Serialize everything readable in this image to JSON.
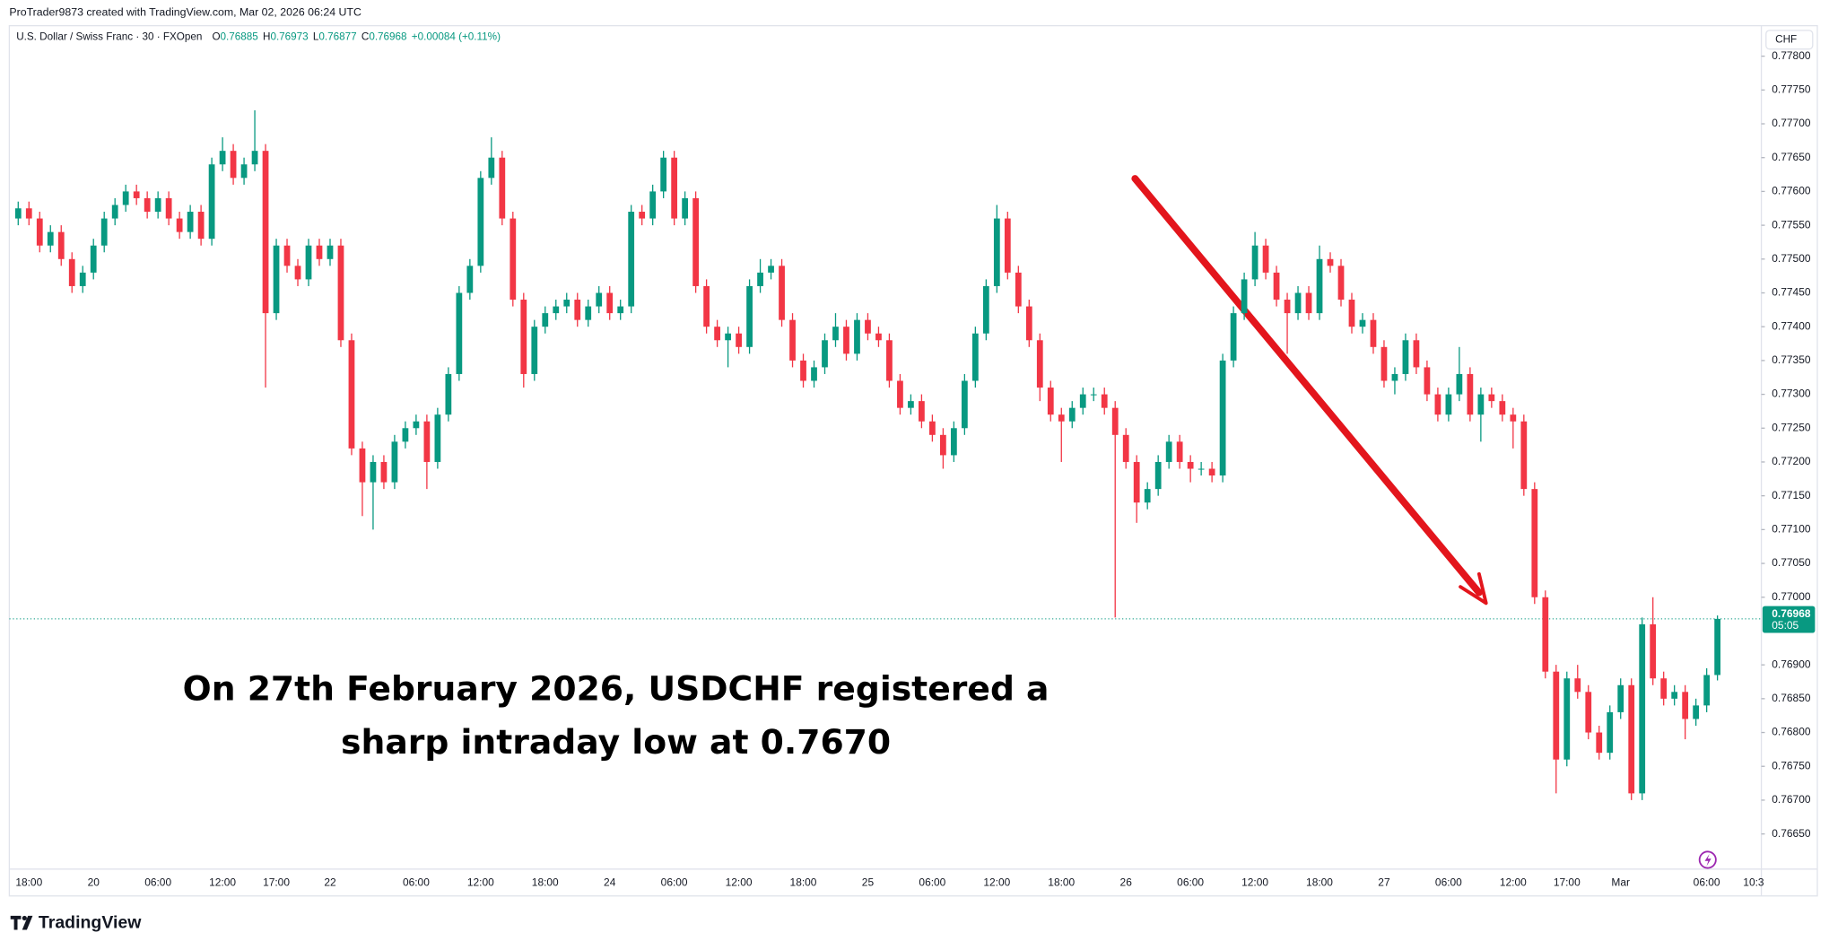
{
  "ui": {
    "attribution": "ProTrader9873 created with TradingView.com, Mar 02, 2026 06:24 UTC",
    "symbol": "U.S. Dollar / Swiss Franc · 30 · FXOpen",
    "ohlc": [
      {
        "key": "O",
        "value": "0.76885"
      },
      {
        "key": "H",
        "value": "0.76973"
      },
      {
        "key": "L",
        "value": "0.76877"
      },
      {
        "key": "C",
        "value": "0.76968"
      }
    ],
    "change": "+0.00084 (+0.11%)",
    "currency": "CHF",
    "last_price": {
      "value": 0.76968,
      "label": "0.76968"
    },
    "countdown": "05:05",
    "x_tail_label": "10:3",
    "brand": "TradingView"
  },
  "chart_data": {
    "type": "candlestick",
    "up_color": "#089981",
    "down_color": "#f23645",
    "grid": false,
    "annotation": [
      "On 27th February 2026, USDCHF registered a",
      "sharp intraday low at 0.7670"
    ],
    "ylim": [
      0.76598,
      0.77814
    ],
    "yticks": [
      {
        "value": 0.7665,
        "label": "0.76650"
      },
      {
        "value": 0.767,
        "label": "0.76700"
      },
      {
        "value": 0.7675,
        "label": "0.76750"
      },
      {
        "value": 0.768,
        "label": "0.76800"
      },
      {
        "value": 0.7685,
        "label": "0.76850"
      },
      {
        "value": 0.769,
        "label": "0.76900"
      },
      {
        "value": 0.77,
        "label": "0.77000"
      },
      {
        "value": 0.7705,
        "label": "0.77050"
      },
      {
        "value": 0.771,
        "label": "0.77100"
      },
      {
        "value": 0.7715,
        "label": "0.77150"
      },
      {
        "value": 0.772,
        "label": "0.77200"
      },
      {
        "value": 0.7725,
        "label": "0.77250"
      },
      {
        "value": 0.773,
        "label": "0.77300"
      },
      {
        "value": 0.7735,
        "label": "0.77350"
      },
      {
        "value": 0.774,
        "label": "0.77400"
      },
      {
        "value": 0.7745,
        "label": "0.77450"
      },
      {
        "value": 0.775,
        "label": "0.77500"
      },
      {
        "value": 0.7755,
        "label": "0.77550"
      },
      {
        "value": 0.776,
        "label": "0.77600"
      },
      {
        "value": 0.7765,
        "label": "0.77650"
      },
      {
        "value": 0.777,
        "label": "0.77700"
      },
      {
        "value": 0.7775,
        "label": "0.77750"
      },
      {
        "value": 0.778,
        "label": "0.77800"
      }
    ],
    "categories": [
      null,
      "18:00",
      null,
      null,
      null,
      null,
      null,
      "20",
      null,
      null,
      null,
      null,
      null,
      "06:00",
      null,
      null,
      null,
      null,
      null,
      "12:00",
      null,
      null,
      null,
      null,
      "17:00",
      null,
      null,
      null,
      null,
      "22",
      null,
      null,
      null,
      null,
      null,
      null,
      null,
      "06:00",
      null,
      null,
      null,
      null,
      null,
      "12:00",
      null,
      null,
      null,
      null,
      null,
      "18:00",
      null,
      null,
      null,
      null,
      null,
      "24",
      null,
      null,
      null,
      null,
      null,
      "06:00",
      null,
      null,
      null,
      null,
      null,
      "12:00",
      null,
      null,
      null,
      null,
      null,
      "18:00",
      null,
      null,
      null,
      null,
      null,
      "25",
      null,
      null,
      null,
      null,
      null,
      "06:00",
      null,
      null,
      null,
      null,
      null,
      "12:00",
      null,
      null,
      null,
      null,
      null,
      "18:00",
      null,
      null,
      null,
      null,
      null,
      "26",
      null,
      null,
      null,
      null,
      null,
      "06:00",
      null,
      null,
      null,
      null,
      null,
      "12:00",
      null,
      null,
      null,
      null,
      null,
      "18:00",
      null,
      null,
      null,
      null,
      null,
      "27",
      null,
      null,
      null,
      null,
      null,
      "06:00",
      null,
      null,
      null,
      null,
      null,
      "12:00",
      null,
      null,
      null,
      null,
      "17:00",
      null,
      null,
      null,
      null,
      "Mar",
      null,
      null,
      null,
      null,
      null,
      null,
      null,
      "06:00",
      null
    ],
    "open": [
      0.7756,
      0.77575,
      0.7756,
      0.7752,
      0.7754,
      0.775,
      0.7746,
      0.7748,
      0.7752,
      0.7756,
      0.7758,
      0.776,
      0.7759,
      0.7757,
      0.7759,
      0.7756,
      0.7754,
      0.7757,
      0.7753,
      0.7764,
      0.7766,
      0.7762,
      0.7764,
      0.7766,
      0.7742,
      0.7752,
      0.7749,
      0.7747,
      0.7752,
      0.775,
      0.7752,
      0.7738,
      0.7722,
      0.7717,
      0.772,
      0.7717,
      0.7723,
      0.7725,
      0.7726,
      0.772,
      0.7727,
      0.7733,
      0.7745,
      0.7749,
      0.7762,
      0.7765,
      0.7756,
      0.7744,
      0.7733,
      0.774,
      0.7742,
      0.7743,
      0.7744,
      0.7741,
      0.7743,
      0.7745,
      0.7742,
      0.7743,
      0.7757,
      0.7756,
      0.776,
      0.7765,
      0.7756,
      0.7759,
      0.7746,
      0.774,
      0.7738,
      0.7739,
      0.7737,
      0.7746,
      0.7748,
      0.7749,
      0.7741,
      0.7735,
      0.7732,
      0.7734,
      0.7738,
      0.774,
      0.7736,
      0.7741,
      0.7739,
      0.7738,
      0.7732,
      0.7728,
      0.7729,
      0.7726,
      0.7724,
      0.7721,
      0.7725,
      0.7732,
      0.7739,
      0.7746,
      0.7756,
      0.7748,
      0.7743,
      0.7738,
      0.7731,
      0.7727,
      0.7726,
      0.7728,
      0.773,
      0.773,
      0.7728,
      0.7724,
      0.772,
      0.7714,
      0.7716,
      0.772,
      0.7723,
      0.772,
      0.7719,
      0.7719,
      0.7718,
      0.7735,
      0.7742,
      0.7747,
      0.7752,
      0.7748,
      0.7744,
      0.7742,
      0.7745,
      0.7742,
      0.775,
      0.7749,
      0.7744,
      0.774,
      0.7741,
      0.7737,
      0.7732,
      0.7733,
      0.7738,
      0.7734,
      0.773,
      0.7727,
      0.773,
      0.7733,
      0.7727,
      0.773,
      0.7729,
      0.7727,
      0.7726,
      0.7716,
      0.77,
      0.7689,
      0.7676,
      0.7688,
      0.7686,
      0.768,
      0.7677,
      0.7683,
      0.7687,
      0.7671,
      0.7696,
      0.7688,
      0.7685,
      0.7686,
      0.7682,
      0.7684,
      0.76885
    ],
    "high": [
      0.77585,
      0.77585,
      0.7757,
      0.7755,
      0.7755,
      0.7751,
      0.7749,
      0.7753,
      0.7757,
      0.7759,
      0.7761,
      0.7761,
      0.776,
      0.776,
      0.776,
      0.7757,
      0.7758,
      0.7758,
      0.7765,
      0.7768,
      0.7767,
      0.7765,
      0.7772,
      0.7767,
      0.7753,
      0.7753,
      0.775,
      0.7753,
      0.7753,
      0.7753,
      0.7753,
      0.7739,
      0.7723,
      0.7721,
      0.7721,
      0.7724,
      0.7726,
      0.7727,
      0.7727,
      0.7728,
      0.7734,
      0.7746,
      0.775,
      0.7763,
      0.7768,
      0.7766,
      0.7757,
      0.7745,
      0.7741,
      0.7743,
      0.7744,
      0.7745,
      0.7745,
      0.7744,
      0.7746,
      0.7746,
      0.7744,
      0.7758,
      0.7758,
      0.7761,
      0.7766,
      0.7766,
      0.776,
      0.776,
      0.7747,
      0.7741,
      0.774,
      0.774,
      0.7747,
      0.775,
      0.775,
      0.775,
      0.7742,
      0.7736,
      0.7735,
      0.7739,
      0.7742,
      0.7741,
      0.7742,
      0.7742,
      0.774,
      0.7739,
      0.7733,
      0.773,
      0.773,
      0.7727,
      0.7725,
      0.7726,
      0.7733,
      0.774,
      0.7747,
      0.7758,
      0.7757,
      0.7749,
      0.7744,
      0.7739,
      0.7732,
      0.7728,
      0.7729,
      0.7731,
      0.7731,
      0.7731,
      0.7729,
      0.7725,
      0.7721,
      0.7717,
      0.7721,
      0.7724,
      0.7724,
      0.7721,
      0.772,
      0.772,
      0.7736,
      0.7743,
      0.7748,
      0.7754,
      0.7753,
      0.7749,
      0.7745,
      0.7746,
      0.7746,
      0.7752,
      0.7751,
      0.775,
      0.7745,
      0.7742,
      0.7742,
      0.7738,
      0.7734,
      0.7739,
      0.7739,
      0.7735,
      0.7731,
      0.7731,
      0.7737,
      0.7734,
      0.7731,
      0.7731,
      0.773,
      0.7728,
      0.7727,
      0.7717,
      0.7701,
      0.769,
      0.7689,
      0.769,
      0.7687,
      0.7681,
      0.7684,
      0.7688,
      0.7688,
      0.7697,
      0.77,
      0.7689,
      0.7687,
      0.7687,
      0.7685,
      0.76895,
      0.76973
    ],
    "low": [
      0.7755,
      0.7755,
      0.7751,
      0.7751,
      0.7749,
      0.7745,
      0.7745,
      0.7747,
      0.7751,
      0.7755,
      0.7757,
      0.7758,
      0.7756,
      0.7756,
      0.7755,
      0.7753,
      0.7753,
      0.7752,
      0.7752,
      0.7763,
      0.7761,
      0.7761,
      0.7763,
      0.7731,
      0.7741,
      0.7748,
      0.7746,
      0.7746,
      0.7749,
      0.7749,
      0.7737,
      0.7721,
      0.7712,
      0.771,
      0.7716,
      0.7716,
      0.7722,
      0.7724,
      0.7716,
      0.7719,
      0.7726,
      0.7732,
      0.7744,
      0.7748,
      0.7761,
      0.7755,
      0.7743,
      0.7731,
      0.7732,
      0.7739,
      0.7741,
      0.7742,
      0.774,
      0.774,
      0.7742,
      0.7741,
      0.7741,
      0.7742,
      0.7755,
      0.7755,
      0.7759,
      0.7755,
      0.7755,
      0.7745,
      0.7739,
      0.7737,
      0.7734,
      0.7736,
      0.7736,
      0.7745,
      0.7747,
      0.774,
      0.7734,
      0.7731,
      0.7731,
      0.7733,
      0.7737,
      0.7735,
      0.7735,
      0.7738,
      0.7737,
      0.7731,
      0.7727,
      0.7727,
      0.7725,
      0.7723,
      0.7719,
      0.772,
      0.7724,
      0.7731,
      0.7738,
      0.7745,
      0.7747,
      0.7742,
      0.7737,
      0.7729,
      0.7726,
      0.772,
      0.7725,
      0.7727,
      0.7729,
      0.7727,
      0.7697,
      0.7719,
      0.7711,
      0.7713,
      0.7715,
      0.7719,
      0.7719,
      0.7717,
      0.7718,
      0.7717,
      0.7717,
      0.7734,
      0.7741,
      0.7746,
      0.7747,
      0.7743,
      0.7736,
      0.7741,
      0.7741,
      0.7741,
      0.7748,
      0.7743,
      0.7739,
      0.7739,
      0.7736,
      0.7731,
      0.773,
      0.7732,
      0.7733,
      0.7729,
      0.7726,
      0.7726,
      0.7729,
      0.7726,
      0.7723,
      0.7728,
      0.7726,
      0.7722,
      0.7715,
      0.7699,
      0.7688,
      0.7671,
      0.7675,
      0.7685,
      0.7679,
      0.7676,
      0.7676,
      0.7682,
      0.767,
      0.767,
      0.7687,
      0.7684,
      0.7684,
      0.7679,
      0.7681,
      0.7683,
      0.76877
    ],
    "close": [
      0.77575,
      0.7756,
      0.7752,
      0.7754,
      0.775,
      0.7746,
      0.7748,
      0.7752,
      0.7756,
      0.7758,
      0.776,
      0.7759,
      0.7757,
      0.7759,
      0.7756,
      0.7754,
      0.7757,
      0.7753,
      0.7764,
      0.7766,
      0.7762,
      0.7764,
      0.7766,
      0.7742,
      0.7752,
      0.7749,
      0.7747,
      0.7752,
      0.775,
      0.7752,
      0.7738,
      0.7722,
      0.7717,
      0.772,
      0.7717,
      0.7723,
      0.7725,
      0.7726,
      0.772,
      0.7727,
      0.7733,
      0.7745,
      0.7749,
      0.7762,
      0.7765,
      0.7756,
      0.7744,
      0.7733,
      0.774,
      0.7742,
      0.7743,
      0.7744,
      0.7741,
      0.7743,
      0.7745,
      0.7742,
      0.7743,
      0.7757,
      0.7756,
      0.776,
      0.7765,
      0.7756,
      0.7759,
      0.7746,
      0.774,
      0.7738,
      0.7739,
      0.7737,
      0.7746,
      0.7748,
      0.7749,
      0.7741,
      0.7735,
      0.7732,
      0.7734,
      0.7738,
      0.774,
      0.7736,
      0.7741,
      0.7739,
      0.7738,
      0.7732,
      0.7728,
      0.7729,
      0.7726,
      0.7724,
      0.7721,
      0.7725,
      0.7732,
      0.7739,
      0.7746,
      0.7756,
      0.7748,
      0.7743,
      0.7738,
      0.7731,
      0.7727,
      0.7726,
      0.7728,
      0.773,
      0.773,
      0.7728,
      0.7724,
      0.772,
      0.7714,
      0.7716,
      0.772,
      0.7723,
      0.772,
      0.7719,
      0.7719,
      0.7718,
      0.7735,
      0.7742,
      0.7747,
      0.7752,
      0.7748,
      0.7744,
      0.7742,
      0.7745,
      0.7742,
      0.775,
      0.7749,
      0.7744,
      0.774,
      0.7741,
      0.7737,
      0.7732,
      0.7733,
      0.7738,
      0.7734,
      0.773,
      0.7727,
      0.773,
      0.7733,
      0.7727,
      0.773,
      0.7729,
      0.7727,
      0.7726,
      0.7716,
      0.77,
      0.7689,
      0.7676,
      0.7688,
      0.7686,
      0.768,
      0.7677,
      0.7683,
      0.7687,
      0.7671,
      0.7696,
      0.7688,
      0.7685,
      0.7686,
      0.7682,
      0.7684,
      0.76885,
      0.76968
    ]
  }
}
